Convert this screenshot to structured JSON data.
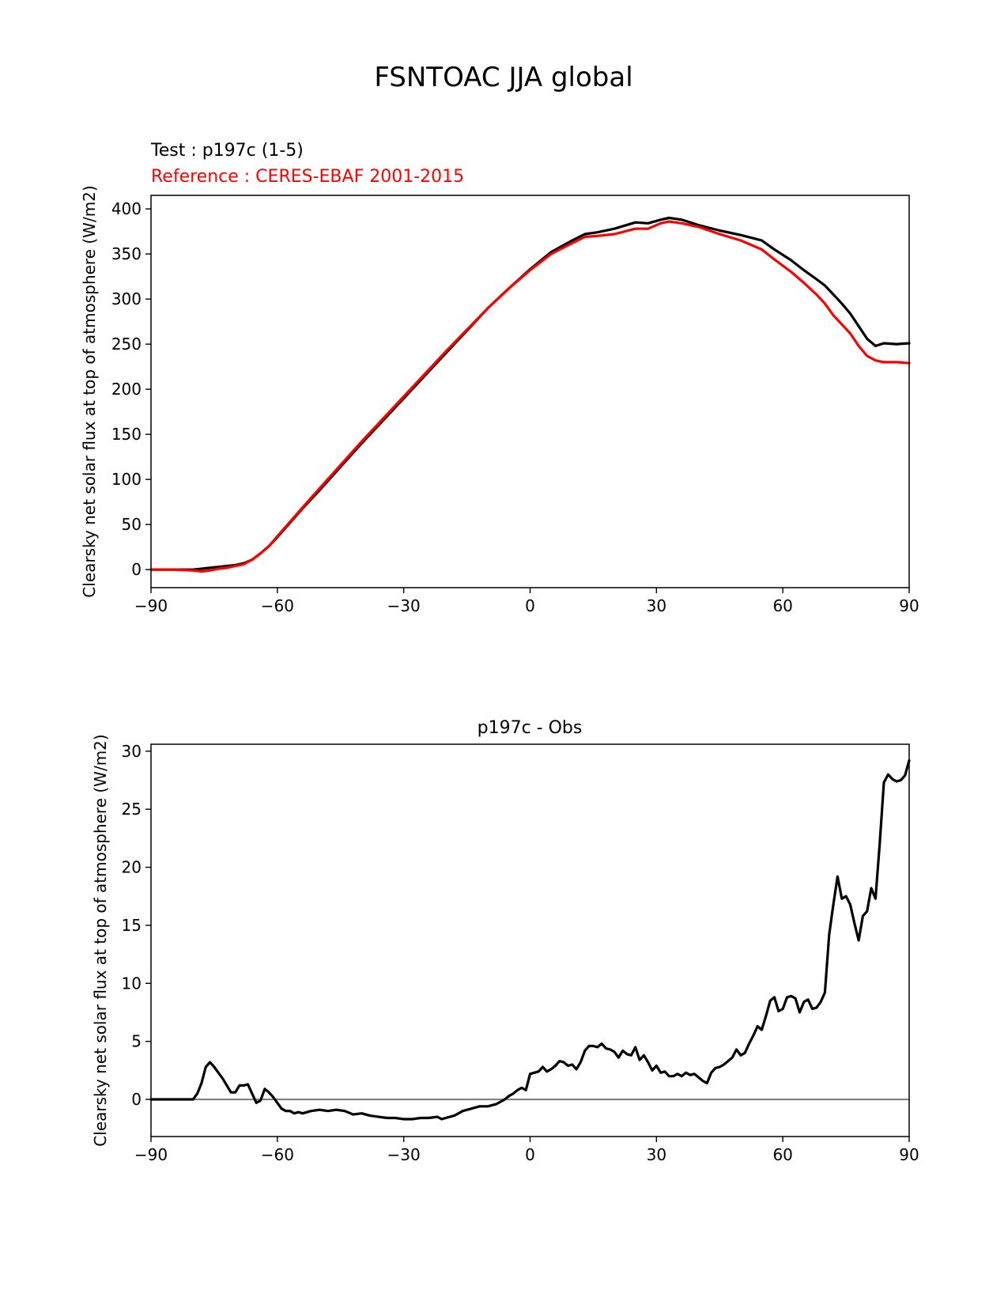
{
  "figure": {
    "title": "FSNTOAC JJA global"
  },
  "colors": {
    "test": "#000000",
    "reference": "#ff0000",
    "diff": "#000000",
    "zero_line": "#808080",
    "axes": "#000000"
  },
  "chart_data": [
    {
      "type": "line",
      "panel": "top",
      "test_label": "Test : p197c (1-5)",
      "reference_label": "Reference : CERES-EBAF 2001-2015",
      "ylabel": "Clearsky net solar flux at top of atmosphere (W/m2)",
      "xlim": [
        -90,
        90
      ],
      "ylim": [
        -20,
        415
      ],
      "xticks": [
        -90,
        -60,
        -30,
        0,
        30,
        60,
        90
      ],
      "yticks": [
        0,
        50,
        100,
        150,
        200,
        250,
        300,
        350,
        400
      ],
      "xticklabels": [
        "−90",
        "−60",
        "−30",
        "0",
        "30",
        "60",
        "90"
      ],
      "yticklabels": [
        "0",
        "50",
        "100",
        "150",
        "200",
        "250",
        "300",
        "350",
        "400"
      ],
      "series": [
        {
          "name": "Test : p197c (1-5)",
          "color": "#000000",
          "x": [
            -90,
            -85,
            -80,
            -78,
            -76,
            -74,
            -72,
            -70,
            -68,
            -66,
            -64,
            -62,
            -60,
            -57,
            -54,
            -50,
            -45,
            -40,
            -35,
            -30,
            -25,
            -20,
            -15,
            -10,
            -5,
            0,
            5,
            10,
            13,
            16,
            20,
            25,
            28,
            31,
            33,
            36,
            40,
            45,
            50,
            55,
            58,
            62,
            65,
            68,
            70,
            72,
            74,
            76,
            78,
            80,
            82,
            84,
            87,
            90
          ],
          "y": [
            0,
            0,
            0,
            1,
            2,
            3,
            4,
            5,
            7,
            11,
            18,
            26,
            36,
            52,
            68,
            88,
            114,
            140,
            165,
            190,
            215,
            240,
            265,
            290,
            312,
            333,
            352,
            365,
            372,
            374,
            378,
            385,
            384,
            388,
            390,
            388,
            382,
            376,
            371,
            365,
            355,
            343,
            332,
            322,
            315,
            305,
            295,
            284,
            270,
            256,
            248,
            251,
            250,
            251
          ]
        },
        {
          "name": "Reference : CERES-EBAF 2001-2015",
          "color": "#ff0000",
          "x": [
            -90,
            -85,
            -80,
            -78,
            -76,
            -74,
            -72,
            -70,
            -68,
            -66,
            -64,
            -62,
            -60,
            -57,
            -54,
            -50,
            -45,
            -40,
            -35,
            -30,
            -25,
            -20,
            -15,
            -10,
            -5,
            0,
            5,
            10,
            13,
            16,
            20,
            25,
            28,
            31,
            33,
            36,
            40,
            45,
            50,
            55,
            58,
            62,
            65,
            68,
            70,
            72,
            74,
            76,
            78,
            80,
            82,
            84,
            87,
            90
          ],
          "y": [
            0,
            0,
            -1,
            -2,
            -1,
            1,
            2,
            4,
            6,
            11,
            18,
            26,
            37,
            53,
            69,
            90,
            116,
            142,
            167,
            192,
            217,
            242,
            266,
            290,
            312,
            332,
            350,
            362,
            369,
            370,
            372,
            378,
            378,
            384,
            386,
            384,
            380,
            372,
            365,
            355,
            344,
            330,
            318,
            305,
            295,
            282,
            272,
            262,
            248,
            237,
            232,
            230,
            230,
            229
          ]
        }
      ]
    },
    {
      "type": "line",
      "panel": "bottom",
      "title": "p197c - Obs",
      "ylabel": "Clearsky net solar flux at top of atmosphere (W/m2)",
      "xlim": [
        -90,
        90
      ],
      "ylim": [
        -3.2,
        30.6
      ],
      "xticks": [
        -90,
        -60,
        -30,
        0,
        30,
        60,
        90
      ],
      "yticks": [
        0,
        5,
        10,
        15,
        20,
        25,
        30
      ],
      "xticklabels": [
        "−90",
        "−60",
        "−30",
        "0",
        "30",
        "60",
        "90"
      ],
      "yticklabels": [
        "0",
        "5",
        "10",
        "15",
        "20",
        "25",
        "30"
      ],
      "zero_line": 0,
      "series": [
        {
          "name": "p197c - Obs",
          "color": "#000000",
          "x": [
            -90,
            -85,
            -80,
            -79,
            -78,
            -77,
            -76,
            -75,
            -74,
            -73,
            -72,
            -71,
            -70,
            -69,
            -68,
            -67,
            -66,
            -65,
            -64,
            -63,
            -62,
            -61,
            -60,
            -59,
            -58,
            -57,
            -56,
            -55,
            -54,
            -52,
            -50,
            -48,
            -46,
            -44,
            -42,
            -40,
            -38,
            -36,
            -34,
            -32,
            -30,
            -28,
            -26,
            -24,
            -22,
            -21,
            -20,
            -18,
            -16,
            -14,
            -12,
            -10,
            -8,
            -7,
            -6,
            -5,
            -4,
            -3,
            -2,
            -1,
            0,
            1,
            2,
            3,
            4,
            5,
            6,
            7,
            8,
            9,
            10,
            11,
            12,
            13,
            14,
            15,
            16,
            17,
            18,
            19,
            20,
            21,
            22,
            23,
            24,
            25,
            26,
            27,
            28,
            29,
            30,
            31,
            32,
            33,
            34,
            35,
            36,
            37,
            38,
            39,
            40,
            41,
            42,
            43,
            44,
            45,
            46,
            47,
            48,
            49,
            50,
            51,
            52,
            53,
            54,
            55,
            56,
            57,
            58,
            59,
            60,
            61,
            62,
            63,
            64,
            65,
            66,
            67,
            68,
            69,
            70,
            71,
            72,
            73,
            74,
            75,
            76,
            77,
            78,
            79,
            80,
            81,
            82,
            83,
            84,
            85,
            86,
            87,
            88,
            89,
            90
          ],
          "y": [
            0,
            0,
            0,
            0.5,
            1.4,
            2.8,
            3.2,
            2.8,
            2.3,
            1.8,
            1.2,
            0.6,
            0.6,
            1.2,
            1.2,
            1.3,
            0.5,
            -0.3,
            -0.1,
            0.9,
            0.6,
            0.2,
            -0.3,
            -0.8,
            -1.0,
            -1.0,
            -1.2,
            -1.1,
            -1.2,
            -1.0,
            -0.9,
            -1.0,
            -0.9,
            -1.0,
            -1.3,
            -1.2,
            -1.4,
            -1.5,
            -1.6,
            -1.6,
            -1.7,
            -1.7,
            -1.6,
            -1.6,
            -1.5,
            -1.7,
            -1.6,
            -1.4,
            -1.0,
            -0.8,
            -0.6,
            -0.6,
            -0.4,
            -0.2,
            0.0,
            0.3,
            0.5,
            0.8,
            1.0,
            0.8,
            2.2,
            2.3,
            2.4,
            2.8,
            2.4,
            2.6,
            2.9,
            3.3,
            3.2,
            2.9,
            3.0,
            2.6,
            3.2,
            4.2,
            4.6,
            4.6,
            4.5,
            4.8,
            4.4,
            4.3,
            4.1,
            3.6,
            4.2,
            3.9,
            3.8,
            4.5,
            3.4,
            3.8,
            3.2,
            2.5,
            2.9,
            2.3,
            2.4,
            2.0,
            2.0,
            2.2,
            2.0,
            2.3,
            2.1,
            2.2,
            1.9,
            1.6,
            1.4,
            2.3,
            2.7,
            2.8,
            3.0,
            3.3,
            3.6,
            4.3,
            3.8,
            4.0,
            4.8,
            5.5,
            6.3,
            6.0,
            7.2,
            8.5,
            8.8,
            7.6,
            7.8,
            8.8,
            8.9,
            8.7,
            7.5,
            8.4,
            8.6,
            7.8,
            7.9,
            8.4,
            9.2,
            14.2,
            16.8,
            19.2,
            17.3,
            17.5,
            16.8,
            15.2,
            13.7,
            15.8,
            16.2,
            18.2,
            17.3,
            22.0,
            27.3,
            28.0,
            27.6,
            27.4,
            27.5,
            27.9,
            29.2
          ]
        }
      ]
    }
  ]
}
